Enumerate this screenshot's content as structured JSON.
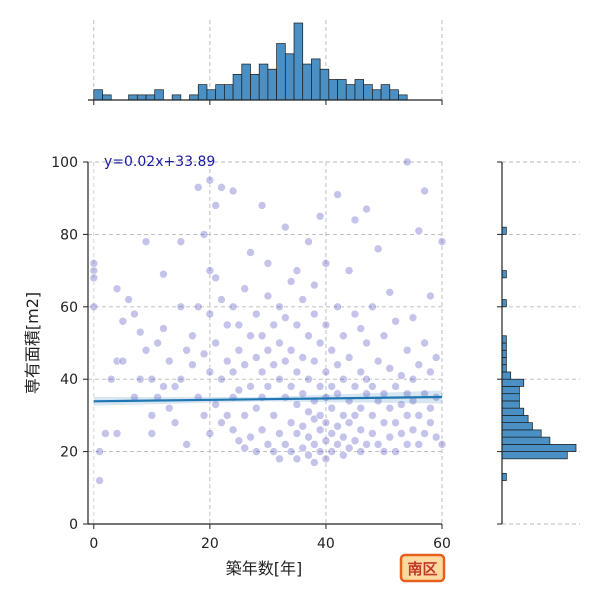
{
  "chart_data": {
    "type": "scatter",
    "title": "",
    "xlabel": "築年数[年]",
    "ylabel": "専有面積[m2]",
    "xlim": [
      -1,
      60
    ],
    "ylim": [
      0,
      100
    ],
    "xticks": [
      0,
      20,
      40,
      60
    ],
    "yticks": [
      0,
      20,
      40,
      60,
      80,
      100
    ],
    "grid": true,
    "regression": {
      "slope": 0.02,
      "intercept": 33.89,
      "label": "y=0.02x+33.89",
      "color": "#1f77b4"
    },
    "scatter_color": "#2b2bb8",
    "hist_color": "#4a90c4",
    "badge": "南区",
    "x_histogram": {
      "bin_start": 0,
      "bin_width": 1.5,
      "counts": [
        2,
        1,
        0,
        0,
        1,
        1,
        1,
        2,
        0,
        1,
        0,
        1,
        3,
        2,
        3,
        3,
        5,
        7,
        5,
        7,
        6,
        11,
        9,
        15,
        7,
        8,
        6,
        4,
        4,
        3,
        4,
        3,
        2,
        3,
        2,
        1
      ]
    },
    "y_histogram": {
      "bin_start": 12,
      "bin_width": 2,
      "counts": [
        1,
        0,
        0,
        15,
        17,
        11,
        9,
        7,
        6,
        5,
        4,
        4,
        4,
        5,
        2,
        1,
        1,
        1,
        1,
        1,
        0,
        0,
        0,
        0,
        1,
        0,
        0,
        0,
        1,
        0,
        0,
        0,
        0,
        0,
        1,
        0,
        0,
        0,
        0,
        0,
        0
      ]
    },
    "points": [
      [
        0,
        70
      ],
      [
        0,
        72
      ],
      [
        0,
        68
      ],
      [
        0,
        60
      ],
      [
        1,
        12
      ],
      [
        1,
        20
      ],
      [
        2,
        25
      ],
      [
        3,
        40
      ],
      [
        4,
        65
      ],
      [
        4,
        45
      ],
      [
        4,
        25
      ],
      [
        5,
        45
      ],
      [
        5,
        56
      ],
      [
        6,
        62
      ],
      [
        7,
        58
      ],
      [
        7,
        35
      ],
      [
        8,
        53
      ],
      [
        8,
        40
      ],
      [
        9,
        48
      ],
      [
        9,
        78
      ],
      [
        10,
        40
      ],
      [
        10,
        30
      ],
      [
        10,
        25
      ],
      [
        11,
        50
      ],
      [
        11,
        35
      ],
      [
        12,
        54
      ],
      [
        12,
        69
      ],
      [
        12,
        38
      ],
      [
        13,
        45
      ],
      [
        13,
        32
      ],
      [
        14,
        38
      ],
      [
        14,
        28
      ],
      [
        15,
        60
      ],
      [
        15,
        40
      ],
      [
        15,
        78
      ],
      [
        16,
        48
      ],
      [
        16,
        22
      ],
      [
        17,
        52
      ],
      [
        17,
        44
      ],
      [
        18,
        60
      ],
      [
        18,
        93
      ],
      [
        18,
        35
      ],
      [
        19,
        80
      ],
      [
        19,
        47
      ],
      [
        19,
        30
      ],
      [
        20,
        58
      ],
      [
        20,
        70
      ],
      [
        20,
        95
      ],
      [
        20,
        42
      ],
      [
        20,
        25
      ],
      [
        21,
        88
      ],
      [
        21,
        68
      ],
      [
        21,
        50
      ],
      [
        21,
        33
      ],
      [
        22,
        93
      ],
      [
        22,
        62
      ],
      [
        22,
        40
      ],
      [
        22,
        28
      ],
      [
        23,
        45
      ],
      [
        23,
        30
      ],
      [
        23,
        55
      ],
      [
        24,
        42
      ],
      [
        24,
        26
      ],
      [
        24,
        92
      ],
      [
        24,
        35
      ],
      [
        24,
        60
      ],
      [
        25,
        48
      ],
      [
        25,
        23
      ],
      [
        25,
        37
      ],
      [
        25,
        55
      ],
      [
        26,
        44
      ],
      [
        26,
        21
      ],
      [
        26,
        30
      ],
      [
        26,
        65
      ],
      [
        27,
        52
      ],
      [
        27,
        38
      ],
      [
        27,
        24
      ],
      [
        27,
        75
      ],
      [
        28,
        46
      ],
      [
        28,
        32
      ],
      [
        28,
        20
      ],
      [
        28,
        58
      ],
      [
        29,
        42
      ],
      [
        29,
        26
      ],
      [
        29,
        52
      ],
      [
        29,
        88
      ],
      [
        29,
        35
      ],
      [
        30,
        48
      ],
      [
        30,
        22
      ],
      [
        30,
        38
      ],
      [
        30,
        63
      ],
      [
        30,
        72
      ],
      [
        31,
        55
      ],
      [
        31,
        30
      ],
      [
        31,
        20
      ],
      [
        31,
        44
      ],
      [
        32,
        40
      ],
      [
        32,
        25
      ],
      [
        32,
        18
      ],
      [
        32,
        50
      ],
      [
        32,
        60
      ],
      [
        33,
        45
      ],
      [
        33,
        22
      ],
      [
        33,
        35
      ],
      [
        33,
        57
      ],
      [
        33,
        82
      ],
      [
        34,
        38
      ],
      [
        34,
        20
      ],
      [
        34,
        28
      ],
      [
        34,
        48
      ],
      [
        34,
        67
      ],
      [
        35,
        42
      ],
      [
        35,
        18
      ],
      [
        35,
        25
      ],
      [
        35,
        33
      ],
      [
        35,
        55
      ],
      [
        35,
        70
      ],
      [
        36,
        36
      ],
      [
        36,
        21
      ],
      [
        36,
        27
      ],
      [
        36,
        46
      ],
      [
        36,
        62
      ],
      [
        37,
        40
      ],
      [
        37,
        19
      ],
      [
        37,
        24
      ],
      [
        37,
        31
      ],
      [
        37,
        52
      ],
      [
        37,
        78
      ],
      [
        38,
        34
      ],
      [
        38,
        17
      ],
      [
        38,
        22
      ],
      [
        38,
        29
      ],
      [
        38,
        45
      ],
      [
        38,
        58
      ],
      [
        38,
        66
      ],
      [
        39,
        30
      ],
      [
        39,
        20
      ],
      [
        39,
        26
      ],
      [
        39,
        38
      ],
      [
        39,
        50
      ],
      [
        39,
        85
      ],
      [
        40,
        35
      ],
      [
        40,
        18
      ],
      [
        40,
        23
      ],
      [
        40,
        28
      ],
      [
        40,
        42
      ],
      [
        40,
        55
      ],
      [
        40,
        72
      ],
      [
        41,
        32
      ],
      [
        41,
        20
      ],
      [
        41,
        25
      ],
      [
        41,
        38
      ],
      [
        41,
        48
      ],
      [
        42,
        36
      ],
      [
        42,
        22
      ],
      [
        42,
        27
      ],
      [
        42,
        44
      ],
      [
        42,
        60
      ],
      [
        42,
        91
      ],
      [
        43,
        30
      ],
      [
        43,
        19
      ],
      [
        43,
        24
      ],
      [
        43,
        40
      ],
      [
        43,
        52
      ],
      [
        44,
        34
      ],
      [
        44,
        21
      ],
      [
        44,
        28
      ],
      [
        44,
        46
      ],
      [
        44,
        70
      ],
      [
        45,
        38
      ],
      [
        45,
        23
      ],
      [
        45,
        30
      ],
      [
        45,
        58
      ],
      [
        45,
        84
      ],
      [
        46,
        32
      ],
      [
        46,
        20
      ],
      [
        46,
        26
      ],
      [
        46,
        42
      ],
      [
        46,
        54
      ],
      [
        47,
        36
      ],
      [
        47,
        22
      ],
      [
        47,
        40
      ],
      [
        47,
        50
      ],
      [
        47,
        87
      ],
      [
        48,
        30
      ],
      [
        48,
        25
      ],
      [
        48,
        38
      ],
      [
        48,
        60
      ],
      [
        49,
        34
      ],
      [
        49,
        22
      ],
      [
        49,
        45
      ],
      [
        49,
        76
      ],
      [
        50,
        28
      ],
      [
        50,
        20
      ],
      [
        50,
        36
      ],
      [
        50,
        52
      ],
      [
        51,
        32
      ],
      [
        51,
        24
      ],
      [
        51,
        43
      ],
      [
        51,
        64
      ],
      [
        52,
        38
      ],
      [
        52,
        20
      ],
      [
        52,
        28
      ],
      [
        52,
        56
      ],
      [
        53,
        33
      ],
      [
        53,
        25
      ],
      [
        53,
        41
      ],
      [
        54,
        36
      ],
      [
        54,
        22
      ],
      [
        54,
        30
      ],
      [
        54,
        48
      ],
      [
        54,
        100
      ],
      [
        55,
        34
      ],
      [
        55,
        26
      ],
      [
        55,
        40
      ],
      [
        55,
        57
      ],
      [
        56,
        30
      ],
      [
        56,
        22
      ],
      [
        56,
        44
      ],
      [
        56,
        81
      ],
      [
        57,
        36
      ],
      [
        57,
        25
      ],
      [
        57,
        50
      ],
      [
        57,
        92
      ],
      [
        58,
        32
      ],
      [
        58,
        28
      ],
      [
        58,
        42
      ],
      [
        58,
        63
      ],
      [
        59,
        35
      ],
      [
        59,
        24
      ],
      [
        59,
        46
      ],
      [
        60,
        78
      ],
      [
        60,
        22
      ]
    ]
  }
}
